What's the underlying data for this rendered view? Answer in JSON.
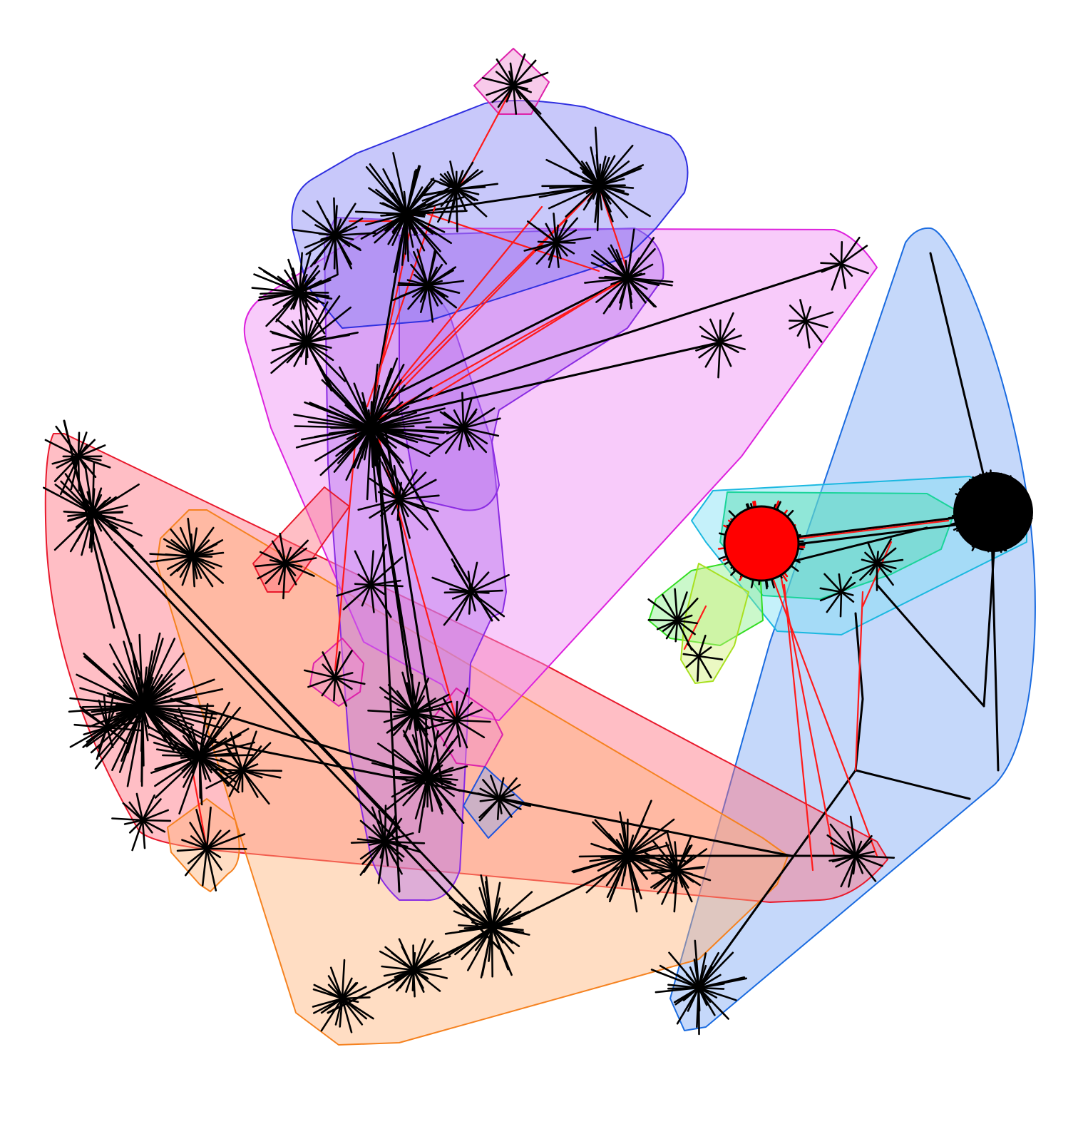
{
  "diagram": {
    "type": "network-graph-with-community-hulls",
    "labels": [],
    "colors": {
      "background": "#ffffff",
      "intra_edge": "#000000",
      "inter_community_edge": "#ff1a1a",
      "hub_fill": "#000000",
      "hub_highlight": "#ff0000"
    },
    "communities": [
      {
        "id": "red",
        "stroke": "#e8192c",
        "fill": "#ff6f7f"
      },
      {
        "id": "orange",
        "stroke": "#f58220",
        "fill": "#ffb47a"
      },
      {
        "id": "purple",
        "stroke": "#8a2be2",
        "fill": "#b673f0"
      },
      {
        "id": "magenta",
        "stroke": "#dd22dd",
        "fill": "#f08cf5"
      },
      {
        "id": "blue",
        "stroke": "#3030e0",
        "fill": "#8585f5"
      },
      {
        "id": "sky-blue",
        "stroke": "#1a6be0",
        "fill": "#7fa8f5"
      },
      {
        "id": "cyan",
        "stroke": "#1ab8e0",
        "fill": "#7fe0f5"
      },
      {
        "id": "teal",
        "stroke": "#1ad49a",
        "fill": "#4fdcb0"
      },
      {
        "id": "green",
        "stroke": "#33dd22",
        "fill": "#8cf08c"
      },
      {
        "id": "lime",
        "stroke": "#a8e020",
        "fill": "#d2f07a"
      },
      {
        "id": "small-red",
        "stroke": "#e8192c",
        "fill": "#ff6f7f"
      },
      {
        "id": "small-orange",
        "stroke": "#f58220",
        "fill": "#ffb47a"
      },
      {
        "id": "small-pink-a",
        "stroke": "#dd22aa",
        "fill": "#f08ad0"
      },
      {
        "id": "small-pink-b",
        "stroke": "#dd22aa",
        "fill": "#f08ad0"
      },
      {
        "id": "small-pink-c",
        "stroke": "#dd22aa",
        "fill": "#f08ad0"
      },
      {
        "id": "small-blue",
        "stroke": "#2255dd",
        "fill": "#8fa8f0"
      }
    ]
  }
}
